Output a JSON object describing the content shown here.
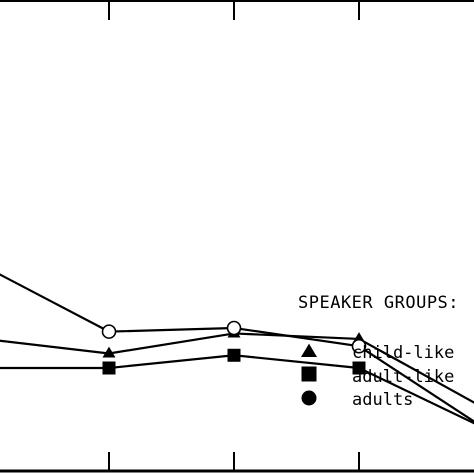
{
  "chart_data": {
    "type": "line",
    "x": [
      0,
      1,
      2,
      3,
      4
    ],
    "series": [
      {
        "name": "child-like",
        "marker": "triangle",
        "values": [
          0.6,
          0.52,
          0.63,
          0.6,
          0.22
        ]
      },
      {
        "name": "adult-like",
        "marker": "square",
        "values": [
          0.44,
          0.44,
          0.51,
          0.44,
          0.11
        ]
      },
      {
        "name": "adults",
        "marker": "circle-open",
        "values": [
          1.0,
          0.64,
          0.66,
          0.56,
          0.11
        ]
      }
    ],
    "legend": {
      "title": "SPEAKER GROUPS:",
      "placement": "lower-right",
      "items": [
        {
          "marker": "triangle",
          "label": "child-like"
        },
        {
          "marker": "square",
          "label": "adult-like"
        },
        {
          "marker": "circle",
          "label": "adults"
        }
      ]
    },
    "ylim": [
      0,
      2.2
    ],
    "xlim": [
      0,
      4
    ],
    "grid": false
  }
}
